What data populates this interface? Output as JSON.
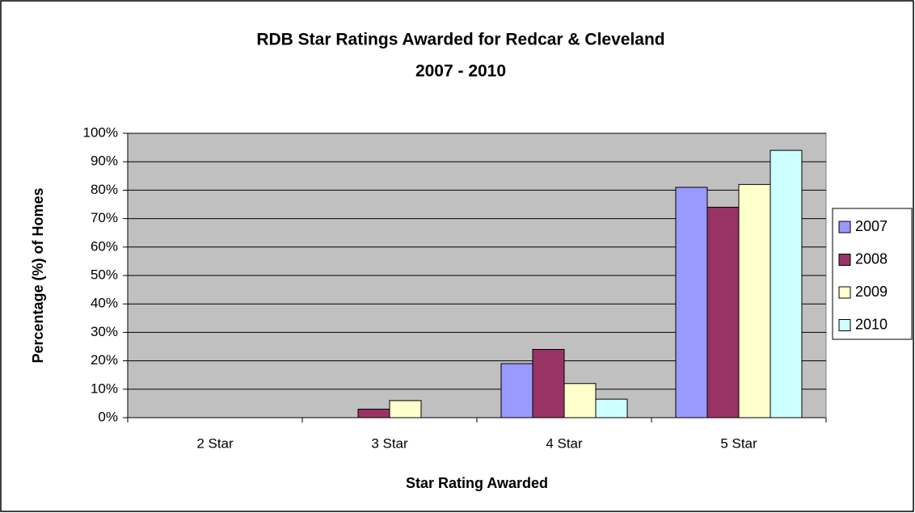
{
  "chart_data": {
    "type": "bar",
    "title": [
      "RDB Star Ratings Awarded for Redcar & Cleveland",
      "2007 - 2010"
    ],
    "x_label": "Star Rating Awarded",
    "y_label": "Percentage (%) of Homes",
    "categories": [
      "2 Star",
      "3 Star",
      "4 Star",
      "5 Star"
    ],
    "series": [
      {
        "name": "2007",
        "color": "#9999ff",
        "values": [
          0,
          0,
          19,
          81
        ]
      },
      {
        "name": "2008",
        "color": "#993366",
        "values": [
          0,
          3,
          24,
          74
        ]
      },
      {
        "name": "2009",
        "color": "#ffffcc",
        "values": [
          0,
          6,
          12,
          82
        ]
      },
      {
        "name": "2010",
        "color": "#ccffff",
        "values": [
          0,
          0,
          6.5,
          94
        ]
      }
    ],
    "ylim": [
      0,
      100
    ],
    "yticks": [
      {
        "value": 0,
        "label": "0%"
      },
      {
        "value": 10,
        "label": "10%"
      },
      {
        "value": 20,
        "label": "20%"
      },
      {
        "value": 30,
        "label": "30%"
      },
      {
        "value": 40,
        "label": "40%"
      },
      {
        "value": 50,
        "label": "50%"
      },
      {
        "value": 60,
        "label": "60%"
      },
      {
        "value": 70,
        "label": "70%"
      },
      {
        "value": 80,
        "label": "80%"
      },
      {
        "value": 90,
        "label": "90%"
      },
      {
        "value": 100,
        "label": "100%"
      }
    ],
    "grid": true,
    "legend": "right",
    "plot_background": "#c0c0c0"
  }
}
